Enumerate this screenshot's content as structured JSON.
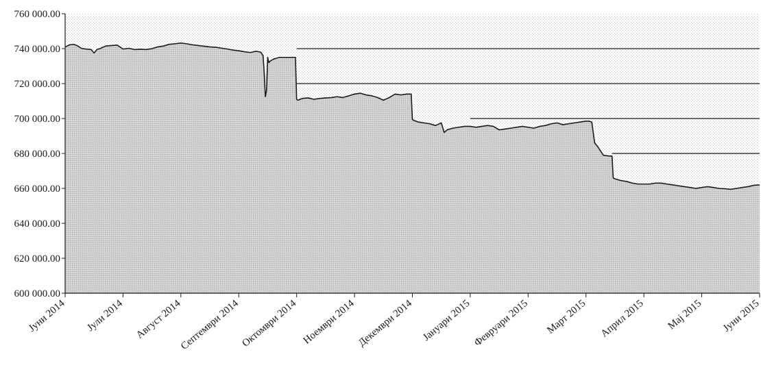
{
  "chart_data": {
    "type": "area",
    "title": "",
    "xlabel": "",
    "ylabel": "",
    "ylim": [
      600000,
      760000
    ],
    "y_ticks": [
      600000,
      620000,
      640000,
      660000,
      680000,
      700000,
      720000,
      740000,
      760000
    ],
    "y_tick_labels": [
      "600 000.00",
      "620 000.00",
      "640 000.00",
      "660 000.00",
      "680 000.00",
      "700 000.00",
      "720 000.00",
      "740 000.00",
      "760 000.00"
    ],
    "x_tick_labels": [
      "Јуни 2014",
      "Јули 2014",
      "Август 2014",
      "Септември 2014",
      "Октомври 2014",
      "Ноември 2014",
      "Декември 2014",
      "Јануари 2015",
      "Февруари 2015",
      "Март 2015",
      "Април 2015",
      "Мај 2015",
      "Јуни 2015"
    ],
    "grid": false,
    "colors": {
      "area_fill": "#c8c8c8",
      "line": "#1a1a1a",
      "background_dots": "#e6e6e6",
      "reference_line": "#1a1a1a"
    },
    "reference_lines": [
      {
        "value": 740000,
        "from_month": 4.0
      },
      {
        "value": 720000,
        "from_month": 4.0
      },
      {
        "value": 700000,
        "from_month": 7.0
      },
      {
        "value": 680000,
        "from_month": 9.45
      }
    ],
    "series": [
      {
        "x": [
          0,
          0.08,
          0.15,
          0.22,
          0.28,
          0.35,
          0.45,
          0.5,
          0.55,
          0.6,
          0.7,
          0.8,
          0.9,
          1.0,
          1.1,
          1.2,
          1.3,
          1.4,
          1.5,
          1.6,
          1.7,
          1.8,
          1.9,
          2.0,
          2.1,
          2.2,
          2.3,
          2.4,
          2.5,
          2.6,
          2.7,
          2.8,
          2.9,
          3.0,
          3.1,
          3.2,
          3.3,
          3.38,
          3.42,
          3.44,
          3.46,
          3.48,
          3.5,
          3.52,
          3.55,
          3.6,
          3.65,
          3.7,
          3.8,
          3.9,
          3.98,
          4.0,
          4.02,
          4.1,
          4.2,
          4.3,
          4.4,
          4.5,
          4.6,
          4.7,
          4.8,
          4.9,
          5.0,
          5.1,
          5.2,
          5.3,
          5.4,
          5.5,
          5.6,
          5.7,
          5.8,
          5.9,
          5.98,
          6.0,
          6.02,
          6.1,
          6.2,
          6.3,
          6.4,
          6.5,
          6.55,
          6.6,
          6.7,
          6.8,
          6.9,
          7.0,
          7.1,
          7.2,
          7.3,
          7.4,
          7.5,
          7.6,
          7.7,
          7.8,
          7.9,
          8.0,
          8.1,
          8.2,
          8.3,
          8.4,
          8.5,
          8.6,
          8.7,
          8.8,
          8.9,
          9.0,
          9.05,
          9.1,
          9.15,
          9.2,
          9.3,
          9.4,
          9.45,
          9.47,
          9.5,
          9.6,
          9.7,
          9.8,
          9.9,
          10.0,
          10.1,
          10.2,
          10.3,
          10.4,
          10.5,
          10.6,
          10.7,
          10.8,
          10.9,
          11.0,
          11.1,
          11.2,
          11.3,
          11.4,
          11.5,
          11.6,
          11.7,
          11.8,
          11.9,
          12.0
        ],
        "y": [
          741000,
          742200,
          742500,
          741500,
          740200,
          739800,
          739500,
          737500,
          739500,
          740000,
          741500,
          741800,
          742000,
          739800,
          740200,
          739500,
          739700,
          739500,
          740000,
          741000,
          741500,
          742500,
          742800,
          743200,
          742800,
          742200,
          741800,
          741400,
          741000,
          740800,
          740300,
          739800,
          739200,
          738800,
          738200,
          737800,
          738500,
          738000,
          736000,
          726000,
          712500,
          716000,
          735000,
          732000,
          733000,
          734000,
          734500,
          735000,
          735000,
          735000,
          735000,
          711000,
          710500,
          711500,
          711800,
          711000,
          711500,
          711800,
          712000,
          712500,
          712000,
          713000,
          714000,
          714500,
          713500,
          713000,
          712000,
          710500,
          712000,
          714000,
          713500,
          714000,
          714000,
          699500,
          699000,
          698000,
          697500,
          697000,
          696000,
          697500,
          692000,
          693500,
          694500,
          695000,
          695500,
          695500,
          695000,
          695500,
          696000,
          695500,
          693500,
          694000,
          694500,
          695000,
          695500,
          695000,
          694500,
          695500,
          696000,
          697000,
          697500,
          696500,
          697000,
          697500,
          698000,
          698500,
          698500,
          698000,
          686000,
          684000,
          679000,
          678500,
          678500,
          666000,
          665500,
          664500,
          664000,
          663000,
          662500,
          662500,
          662500,
          663000,
          663000,
          662500,
          662000,
          661500,
          661000,
          660500,
          660000,
          660500,
          661000,
          660500,
          660000,
          659800,
          659500,
          660000,
          660500,
          661000,
          661800,
          662000
        ],
        "x_unit": "months since Јуни 2014"
      }
    ]
  }
}
